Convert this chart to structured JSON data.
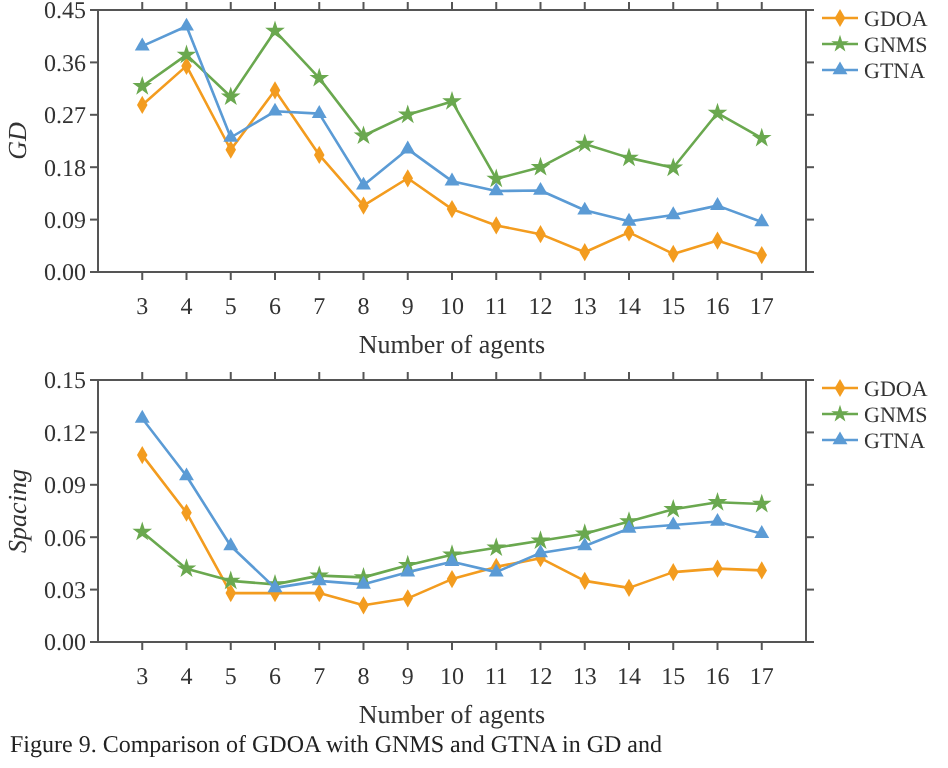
{
  "chart_data": [
    {
      "type": "line",
      "ylabel": "GD",
      "xlabel": "Number of agents",
      "categories": [
        "3",
        "4",
        "5",
        "6",
        "7",
        "8",
        "9",
        "10",
        "11",
        "12",
        "13",
        "14",
        "15",
        "16",
        "17"
      ],
      "ylim": [
        0,
        0.45
      ],
      "yticks": [
        {
          "value": 0,
          "label": "0.00"
        },
        0.09,
        0.18,
        0.27,
        0.36,
        0.45
      ],
      "grid": false,
      "legend": "right",
      "line_style": "solid",
      "series": [
        {
          "name": "GDOA",
          "color": "#f39c1f",
          "marker": "diamond",
          "values": [
            0.287,
            0.354,
            0.21,
            0.312,
            0.201,
            0.114,
            0.161,
            0.108,
            0.08,
            0.065,
            0.034,
            0.068,
            0.031,
            0.054,
            0.029
          ]
        },
        {
          "name": "GNMS",
          "color": "#6aa84f",
          "marker": "star",
          "values": [
            0.319,
            0.373,
            0.301,
            0.414,
            0.333,
            0.234,
            0.27,
            0.293,
            0.16,
            0.18,
            0.22,
            0.196,
            0.179,
            0.273,
            0.23
          ]
        },
        {
          "name": "GTNA",
          "color": "#5b9bd5",
          "marker": "triangle",
          "values": [
            0.388,
            0.422,
            0.231,
            0.276,
            0.272,
            0.149,
            0.211,
            0.156,
            0.139,
            0.14,
            0.106,
            0.087,
            0.098,
            0.114,
            0.086
          ]
        }
      ]
    },
    {
      "type": "line",
      "ylabel": "Spacing",
      "xlabel": "Number of agents",
      "categories": [
        "3",
        "4",
        "5",
        "6",
        "7",
        "8",
        "9",
        "10",
        "11",
        "12",
        "13",
        "14",
        "15",
        "16",
        "17"
      ],
      "ylim": [
        0,
        0.15
      ],
      "yticks": [
        {
          "value": 0,
          "label": "0.00"
        },
        0.03,
        0.06,
        0.09,
        0.12,
        0.15
      ],
      "grid": false,
      "legend": "right",
      "line_style": "solid",
      "annotations": [
        "Figure 9. Comparison of GDOA with GNMS and GTNA in GD and"
      ],
      "series": [
        {
          "name": "GDOA",
          "color": "#f39c1f",
          "marker": "diamond",
          "values": [
            0.107,
            0.074,
            0.028,
            0.028,
            0.028,
            0.021,
            0.025,
            0.036,
            0.043,
            0.048,
            0.035,
            0.031,
            0.04,
            0.042,
            0.041
          ]
        },
        {
          "name": "GNMS",
          "color": "#6aa84f",
          "marker": "star",
          "values": [
            0.063,
            0.042,
            0.035,
            0.033,
            0.038,
            0.037,
            0.044,
            0.05,
            0.054,
            0.058,
            0.062,
            0.069,
            0.076,
            0.08,
            0.079
          ]
        },
        {
          "name": "GTNA",
          "color": "#5b9bd5",
          "marker": "triangle",
          "values": [
            0.128,
            0.095,
            0.055,
            0.031,
            0.035,
            0.033,
            0.04,
            0.046,
            0.04,
            0.051,
            0.055,
            0.065,
            0.067,
            0.069,
            0.062
          ]
        }
      ]
    }
  ]
}
